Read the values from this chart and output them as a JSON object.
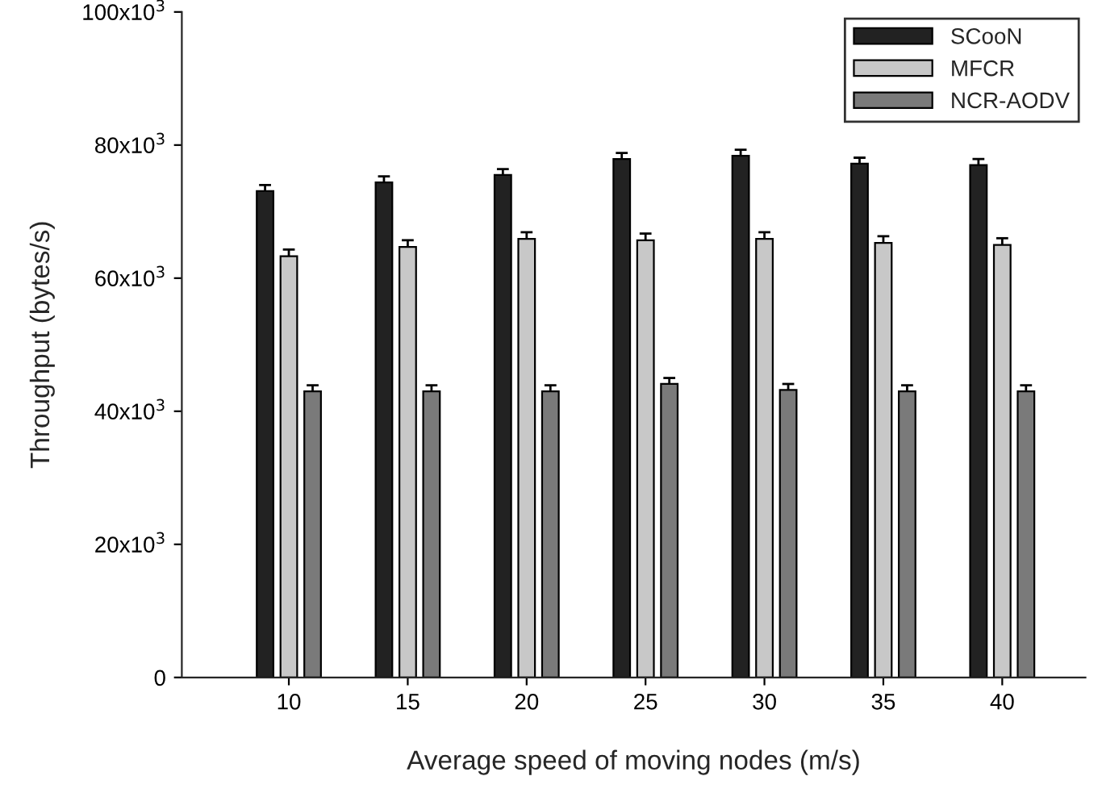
{
  "chart_data": {
    "type": "bar",
    "xlabel": "Average speed of moving nodes (m/s)",
    "ylabel": "Throughput (bytes/s)",
    "categories": [
      "10",
      "15",
      "20",
      "25",
      "30",
      "35",
      "40"
    ],
    "series": [
      {
        "name": "SCooN",
        "color": "#222222",
        "values": [
          73100,
          74400,
          75500,
          77900,
          78400,
          77200,
          77000
        ],
        "errors": [
          [
            73100,
            74000
          ],
          [
            74400,
            75300
          ],
          [
            75500,
            76400
          ],
          [
            77900,
            78800
          ],
          [
            78400,
            79300
          ],
          [
            77200,
            78100
          ],
          [
            77000,
            77900
          ]
        ]
      },
      {
        "name": "MFCR",
        "color": "#c8c8c8",
        "values": [
          63300,
          64700,
          65900,
          65700,
          65900,
          65300,
          65000
        ],
        "errors": [
          [
            63300,
            64300
          ],
          [
            64700,
            65700
          ],
          [
            65900,
            66900
          ],
          [
            65700,
            66700
          ],
          [
            65900,
            66900
          ],
          [
            65300,
            66300
          ],
          [
            65000,
            66000
          ]
        ]
      },
      {
        "name": "NCR-AODV",
        "color": "#7a7a7a",
        "values": [
          43000,
          43000,
          43000,
          44100,
          43200,
          43000,
          43000
        ],
        "errors": [
          [
            43000,
            43900
          ],
          [
            43000,
            43900
          ],
          [
            43000,
            43900
          ],
          [
            44100,
            45000
          ],
          [
            43200,
            44100
          ],
          [
            43000,
            43900
          ],
          [
            43000,
            43900
          ]
        ]
      }
    ],
    "ylim": [
      0,
      100000
    ],
    "yticks": [
      0,
      {
        "value": 20000,
        "label": "20x10$^{3}$"
      },
      {
        "value": 40000,
        "label": "40x10$^{3}$"
      },
      {
        "value": 60000,
        "label": "60x10$^{3}$"
      },
      {
        "value": 80000,
        "label": "80x10$^{3}$"
      },
      {
        "value": 100000,
        "label": "100x10$^{3}$"
      }
    ],
    "legend": "top right",
    "grid": false
  }
}
